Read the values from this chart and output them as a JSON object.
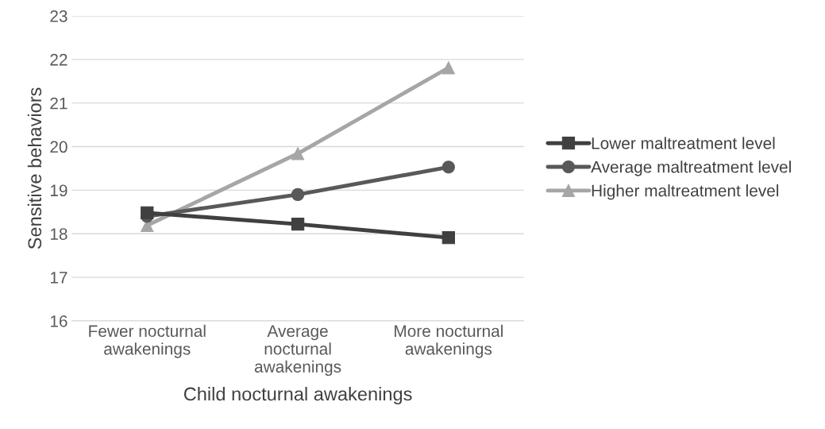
{
  "chart_data": {
    "type": "line",
    "xlabel": "Child nocturnal awakenings",
    "ylabel": "Sensitive behaviors",
    "categories": [
      "Fewer nocturnal\nawakenings",
      "Average\nnocturnal\nawakenings",
      "More nocturnal\nawakenings"
    ],
    "series": [
      {
        "name": "Lower maltreatment level",
        "color": "#404040",
        "marker": "square",
        "values": [
          18.48,
          18.22,
          17.91
        ]
      },
      {
        "name": "Average maltreatment level",
        "color": "#595959",
        "marker": "circle",
        "values": [
          18.4,
          18.9,
          19.53
        ]
      },
      {
        "name": "Higher maltreatment level",
        "color": "#a6a6a6",
        "marker": "triangle",
        "values": [
          18.19,
          19.84,
          21.81
        ]
      }
    ],
    "ylim": [
      16,
      23
    ],
    "yticks": [
      16,
      17,
      18,
      19,
      20,
      21,
      22,
      23
    ],
    "grid": "y",
    "legend": "right",
    "line_style": "solid"
  }
}
